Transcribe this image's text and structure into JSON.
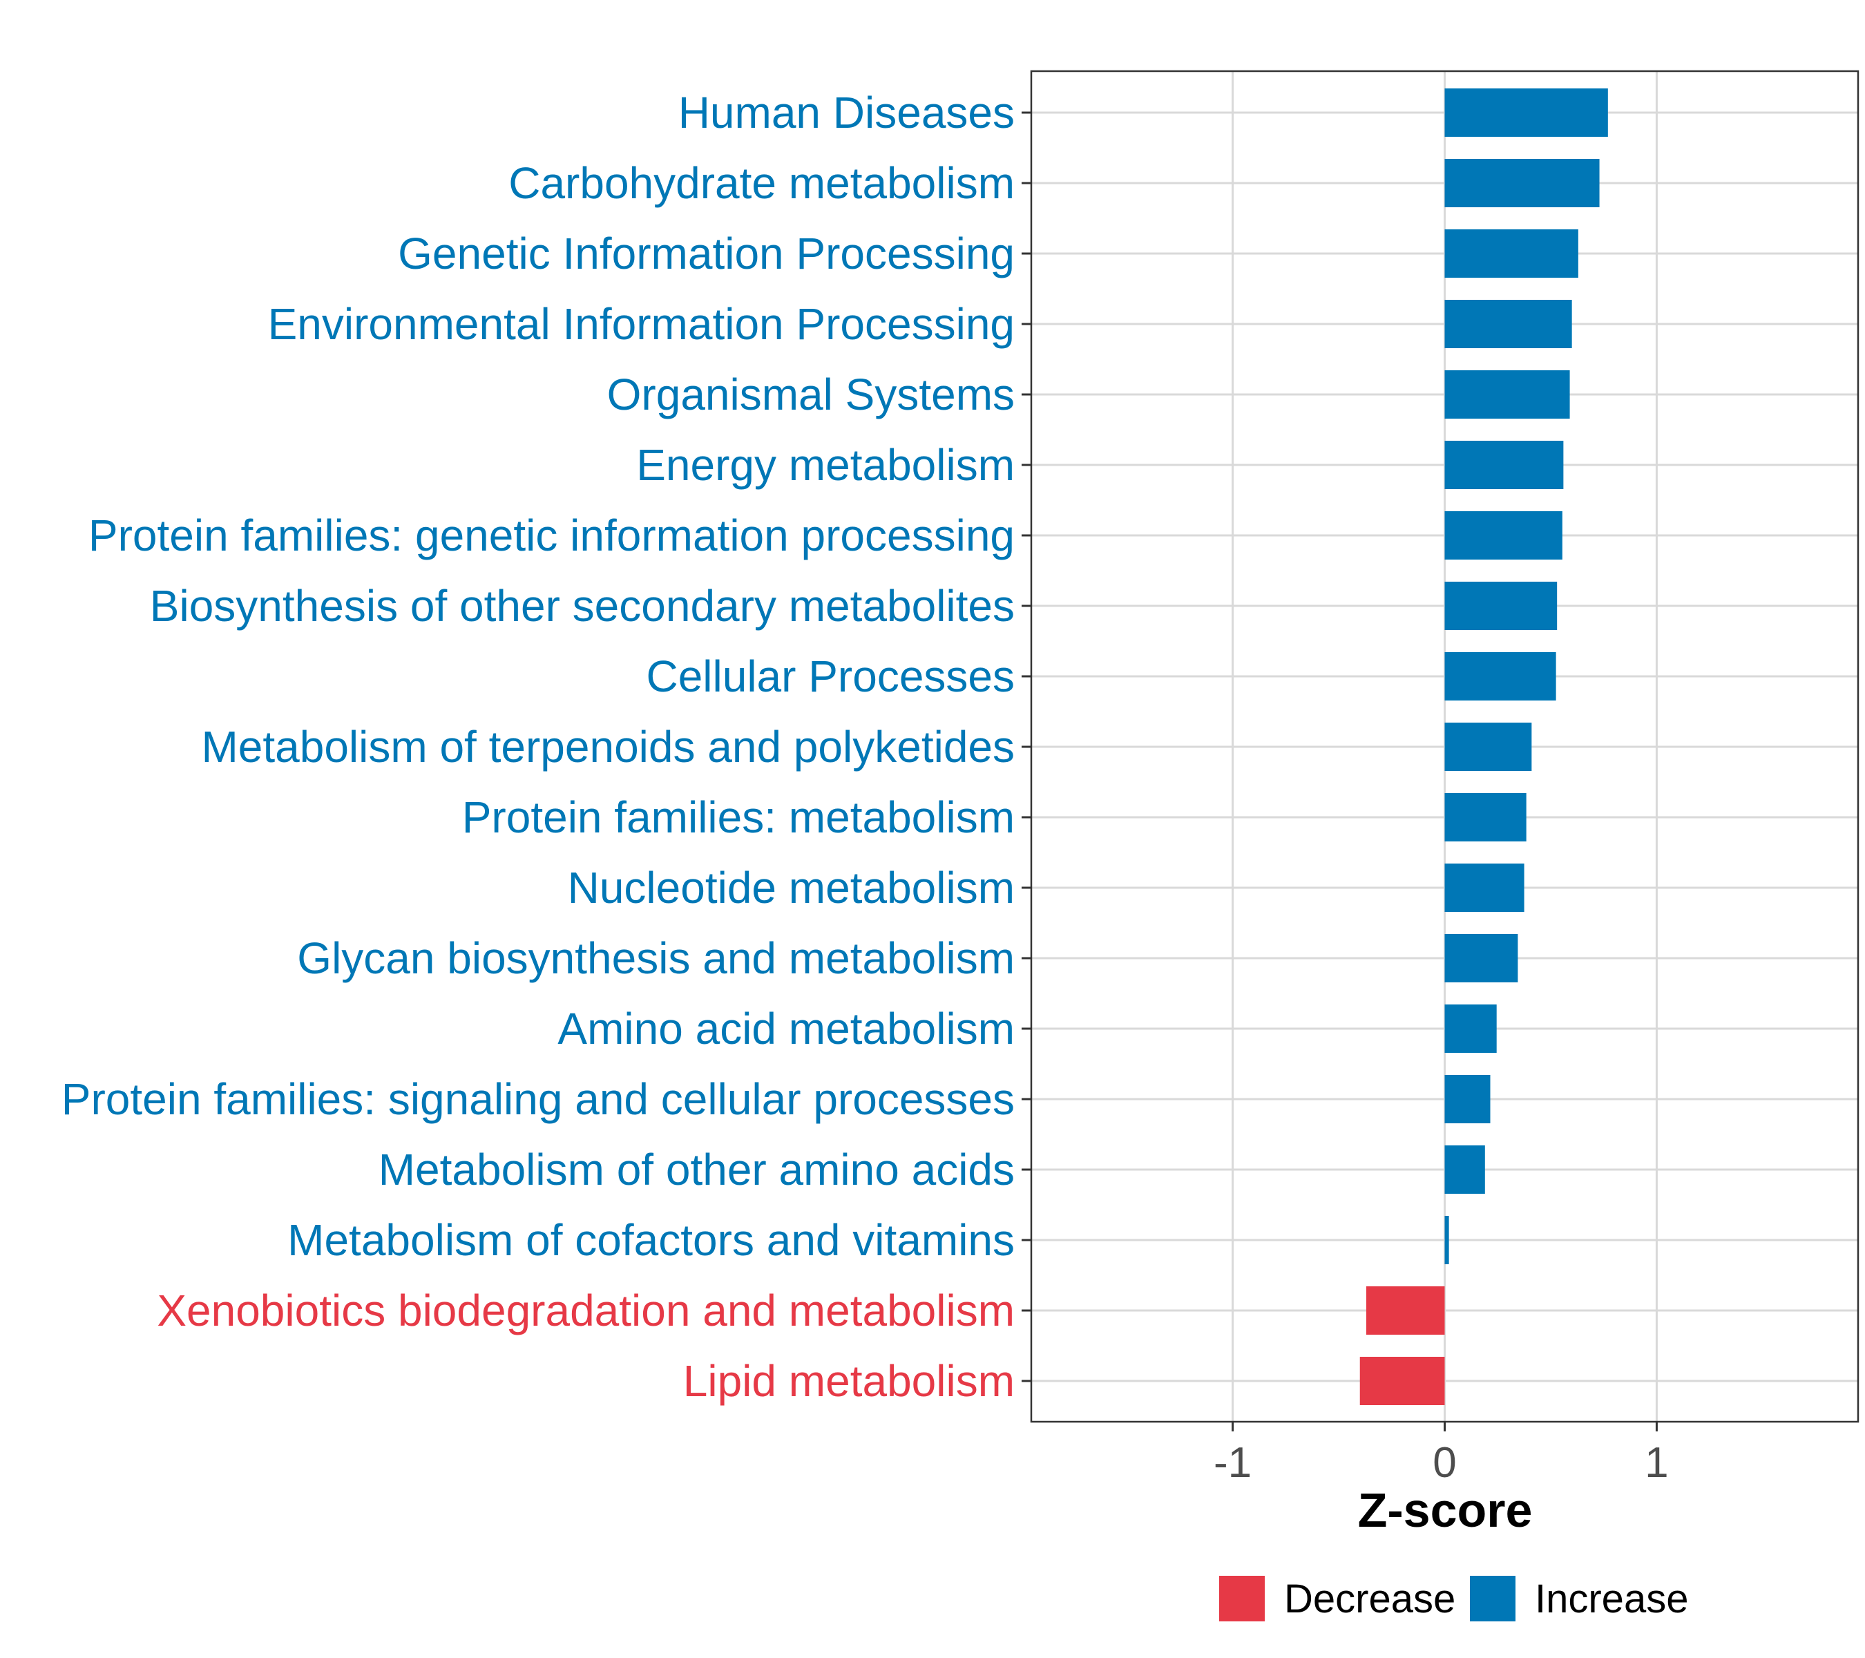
{
  "colors": {
    "increase": "#0077B6",
    "decrease": "#E63946",
    "grid": "#D9D9D9",
    "panel_border": "#333333",
    "tick_text": "#4d4d4d"
  },
  "chart_data": {
    "type": "bar",
    "orientation": "horizontal",
    "title": "",
    "xlabel": "Z-score",
    "ylabel": "",
    "xlim": [
      -1.95,
      1.95
    ],
    "x_ticks": [
      -1,
      0,
      1
    ],
    "x_tick_labels": [
      "-1",
      "0",
      "1"
    ],
    "grid": true,
    "legend_position": "bottom",
    "categories": [
      "Human Diseases",
      "Carbohydrate metabolism",
      "Genetic Information Processing",
      "Environmental Information Processing",
      "Organismal Systems",
      "Energy metabolism",
      "Protein families: genetic information processing",
      "Biosynthesis of other secondary metabolites",
      "Cellular Processes",
      "Metabolism of terpenoids and polyketides",
      "Protein families: metabolism",
      "Nucleotide metabolism",
      "Glycan biosynthesis and metabolism",
      "Amino acid metabolism",
      "Protein families: signaling and cellular processes",
      "Metabolism of other amino acids",
      "Metabolism of cofactors and vitamins",
      "Xenobiotics biodegradation and metabolism",
      "Lipid metabolism"
    ],
    "values": [
      0.77,
      0.73,
      0.63,
      0.6,
      0.59,
      0.56,
      0.555,
      0.53,
      0.525,
      0.41,
      0.385,
      0.375,
      0.345,
      0.245,
      0.215,
      0.19,
      0.02,
      -0.37,
      -0.4
    ],
    "groups": [
      "Increase",
      "Increase",
      "Increase",
      "Increase",
      "Increase",
      "Increase",
      "Increase",
      "Increase",
      "Increase",
      "Increase",
      "Increase",
      "Increase",
      "Increase",
      "Increase",
      "Increase",
      "Increase",
      "Increase",
      "Decrease",
      "Decrease"
    ],
    "legend": [
      {
        "name": "Decrease",
        "color": "#E63946"
      },
      {
        "name": "Increase",
        "color": "#0077B6"
      }
    ]
  }
}
